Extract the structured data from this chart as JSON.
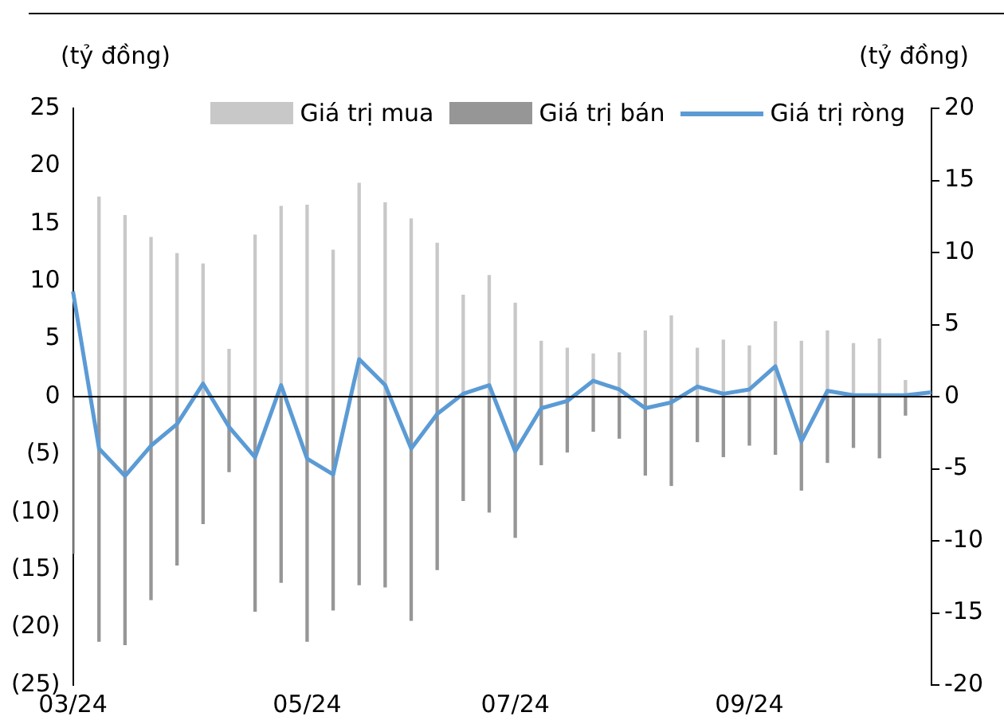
{
  "chart_data": {
    "type": "bar",
    "ylabel": "(tỷ đồng)",
    "y2label": "(tỷ đồng)",
    "categories": [
      "03/24",
      null,
      null,
      null,
      null,
      null,
      null,
      null,
      null,
      "05/24",
      null,
      null,
      null,
      null,
      null,
      null,
      null,
      "07/24",
      null,
      null,
      null,
      null,
      null,
      null,
      null,
      null,
      "09/24",
      null,
      null,
      null,
      null,
      null,
      null,
      null
    ],
    "series": [
      {
        "name": "Giá trị mua",
        "color": "#c8c8c8",
        "values": [
          null,
          17.3,
          15.7,
          13.8,
          12.4,
          11.5,
          4.1,
          14.0,
          16.5,
          16.6,
          12.7,
          18.5,
          16.8,
          15.4,
          13.3,
          8.8,
          10.5,
          8.1,
          4.8,
          4.2,
          3.7,
          3.8,
          5.7,
          7.0,
          4.2,
          4.9,
          4.4,
          6.5,
          4.8,
          5.7,
          4.6,
          5.0,
          1.4,
          null
        ]
      },
      {
        "name": "Giá trị bán",
        "color": "#969696",
        "values": [
          -13.6,
          -21.2,
          -21.5,
          -17.6,
          -14.6,
          -11.0,
          -6.5,
          -18.6,
          -16.1,
          -21.2,
          -18.5,
          -16.3,
          -16.5,
          -19.4,
          -15.0,
          -9.0,
          -10.0,
          -12.2,
          -5.9,
          -4.8,
          -3.0,
          -3.6,
          -6.8,
          -7.7,
          -3.9,
          -5.2,
          -4.2,
          -5.0,
          -8.1,
          -5.7,
          -4.4,
          -5.3,
          -1.6,
          null
        ]
      },
      {
        "name": "Giá trị ròng",
        "type": "line",
        "axis": "y2",
        "color": "#5b9bd5",
        "values": [
          7.3,
          -3.6,
          -5.5,
          -3.4,
          -1.9,
          0.9,
          -2.1,
          -4.2,
          0.8,
          -4.3,
          -5.4,
          2.6,
          0.8,
          -3.6,
          -1.2,
          0.2,
          0.8,
          -3.8,
          -0.8,
          -0.3,
          1.1,
          0.5,
          -0.8,
          -0.4,
          0.7,
          0.2,
          0.5,
          2.1,
          -3.1,
          0.4,
          0.1,
          0.1,
          0.1,
          0.3
        ]
      }
    ],
    "stacked": true,
    "ylim": [
      -25,
      25
    ],
    "yticks": [
      {
        "value": -25,
        "label": "(25)"
      },
      {
        "value": -20,
        "label": "(20)"
      },
      {
        "value": -15,
        "label": "(15)"
      },
      {
        "value": -10,
        "label": "(10)"
      },
      {
        "value": -5,
        "label": "(5)"
      },
      0,
      5,
      10,
      15,
      20,
      25
    ],
    "y2lim": [
      -20,
      20
    ],
    "y2ticks": [
      -20,
      -15,
      -10,
      -5,
      0,
      5,
      10,
      15,
      20
    ],
    "ref_lines": [
      {
        "axis": "y",
        "value": 0,
        "color": "#000000"
      }
    ],
    "grid": false,
    "legend": "top",
    "marker": "none",
    "line_style": "solid"
  }
}
